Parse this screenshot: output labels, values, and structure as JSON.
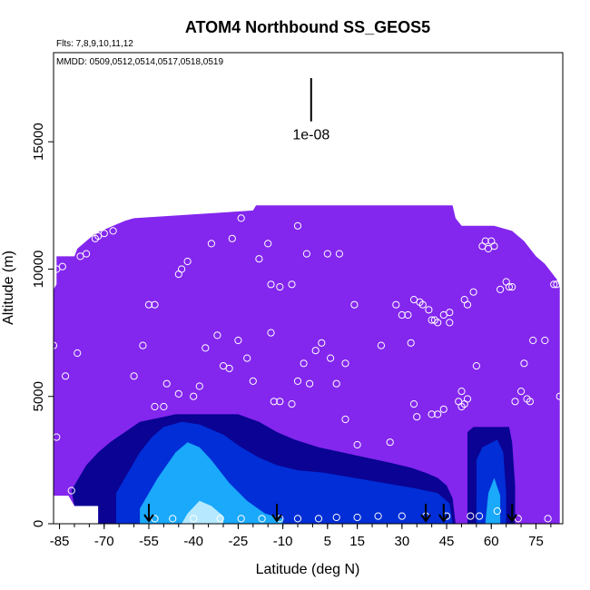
{
  "chart_data": {
    "type": "heatmap",
    "title": "ATOM4 Northbound SS_GEOS5",
    "flights_label": "Flts: 7,8,9,10,11,12",
    "dates_label": "MMDD: 0509,0512,0514,0517,0518,0519",
    "xlabel": "Latitude (deg N)",
    "ylabel": "Altitude (m)",
    "xlim": [
      -87,
      84
    ],
    "ylim": [
      0,
      18500
    ],
    "xticks": [
      "-85",
      "-70",
      "-55",
      "-40",
      "-25",
      "-10",
      "5",
      "15",
      "30",
      "45",
      "60",
      "75"
    ],
    "yticks": [
      "0",
      "5000",
      "10000",
      "15000"
    ],
    "scale_label": "1e-08",
    "scale_bar": {
      "x": -0.5,
      "y0": 15800,
      "y1": 17500
    },
    "colors": {
      "background": "#8326ee",
      "low": "#00008c",
      "mid": "#0033dd",
      "high": "#1db7ff",
      "peak": "#c8f0ff",
      "marker": "#ffffff"
    },
    "top_envelope": [
      [
        -86,
        10500
      ],
      [
        -80,
        10500
      ],
      [
        -79,
        10800
      ],
      [
        -77,
        11000
      ],
      [
        -75,
        11200
      ],
      [
        -73,
        11400
      ],
      [
        -71,
        11500
      ],
      [
        -69,
        11600
      ],
      [
        -67,
        11700
      ],
      [
        -65,
        11800
      ],
      [
        -63,
        11900
      ],
      [
        -60,
        12000
      ],
      [
        -20,
        12300
      ],
      [
        -19,
        12500
      ],
      [
        47,
        12500
      ],
      [
        48,
        12000
      ],
      [
        50,
        11700
      ],
      [
        61,
        11700
      ],
      [
        64,
        11600
      ],
      [
        67,
        11500
      ],
      [
        69,
        11300
      ],
      [
        71,
        11100
      ],
      [
        73,
        10800
      ],
      [
        75,
        10500
      ],
      [
        78,
        10200
      ],
      [
        80,
        9900
      ],
      [
        82,
        9600
      ],
      [
        83,
        9300
      ]
    ],
    "left_edge": [
      [
        -87,
        0
      ],
      [
        -87,
        9200
      ],
      [
        -86,
        9400
      ],
      [
        -86,
        10500
      ]
    ],
    "right_edge": [
      [
        83,
        9300
      ],
      [
        83,
        0
      ]
    ],
    "blank_bottom_left": [
      [
        -87,
        0
      ],
      [
        -87,
        1100
      ],
      [
        -82,
        1100
      ],
      [
        -80,
        700
      ],
      [
        -72,
        700
      ],
      [
        -72,
        0
      ]
    ],
    "enhancement_regions": [
      {
        "level": "low",
        "points": [
          [
            -81,
            1300
          ],
          [
            -79,
            1700
          ],
          [
            -76,
            2300
          ],
          [
            -72,
            2800
          ],
          [
            -68,
            3200
          ],
          [
            -63,
            3600
          ],
          [
            -58,
            4000
          ],
          [
            -50,
            4200
          ],
          [
            -46,
            4300
          ],
          [
            -40,
            4300
          ],
          [
            -25,
            4300
          ],
          [
            -18,
            4000
          ],
          [
            -12,
            3600
          ],
          [
            -6,
            3300
          ],
          [
            2,
            3000
          ],
          [
            10,
            2800
          ],
          [
            18,
            2600
          ],
          [
            26,
            2400
          ],
          [
            33,
            2200
          ],
          [
            38,
            2000
          ],
          [
            42,
            1800
          ],
          [
            45,
            1500
          ],
          [
            47,
            1000
          ],
          [
            48,
            0
          ],
          [
            -72,
            0
          ],
          [
            -72,
            700
          ],
          [
            -80,
            700
          ]
        ]
      },
      {
        "level": "mid",
        "points": [
          [
            -66,
            1200
          ],
          [
            -62,
            2000
          ],
          [
            -58,
            2800
          ],
          [
            -54,
            3400
          ],
          [
            -50,
            3800
          ],
          [
            -44,
            4000
          ],
          [
            -38,
            3900
          ],
          [
            -30,
            3500
          ],
          [
            -24,
            3000
          ],
          [
            -18,
            2600
          ],
          [
            -12,
            2300
          ],
          [
            -5,
            2100
          ],
          [
            4,
            2000
          ],
          [
            14,
            1800
          ],
          [
            24,
            1600
          ],
          [
            34,
            1400
          ],
          [
            42,
            1200
          ],
          [
            46,
            800
          ],
          [
            47,
            0
          ],
          [
            -66,
            0
          ]
        ]
      },
      {
        "level": "high",
        "points": [
          [
            -58,
            600
          ],
          [
            -52,
            1800
          ],
          [
            -46,
            2800
          ],
          [
            -42,
            3200
          ],
          [
            -38,
            3000
          ],
          [
            -34,
            2500
          ],
          [
            -28,
            1600
          ],
          [
            -22,
            900
          ],
          [
            -16,
            400
          ],
          [
            -10,
            200
          ],
          [
            -10,
            0
          ],
          [
            -58,
            0
          ]
        ]
      },
      {
        "level": "peak",
        "points": [
          [
            -42,
            400
          ],
          [
            -38,
            900
          ],
          [
            -34,
            700
          ],
          [
            -30,
            300
          ],
          [
            -30,
            0
          ],
          [
            -44,
            0
          ]
        ]
      },
      {
        "level": "low",
        "points": [
          [
            52,
            0
          ],
          [
            52,
            3600
          ],
          [
            54,
            3800
          ],
          [
            66,
            3800
          ],
          [
            67,
            3200
          ],
          [
            68,
            1500
          ],
          [
            68,
            0
          ]
        ]
      },
      {
        "level": "mid",
        "points": [
          [
            55,
            0
          ],
          [
            55,
            2500
          ],
          [
            57,
            3000
          ],
          [
            62,
            3300
          ],
          [
            64,
            2800
          ],
          [
            65,
            1200
          ],
          [
            65,
            0
          ]
        ]
      },
      {
        "level": "high",
        "points": [
          [
            58,
            0
          ],
          [
            59,
            1200
          ],
          [
            61,
            1800
          ],
          [
            63,
            1100
          ],
          [
            63,
            0
          ]
        ]
      }
    ],
    "observations": [
      [
        -87,
        7000
      ],
      [
        -86,
        10000
      ],
      [
        -84,
        10100
      ],
      [
        -86,
        3400
      ],
      [
        -83,
        5800
      ],
      [
        -81,
        1300
      ],
      [
        -79,
        6700
      ],
      [
        -78,
        10500
      ],
      [
        -76,
        10600
      ],
      [
        -73,
        11200
      ],
      [
        -72,
        11300
      ],
      [
        -70,
        11400
      ],
      [
        -67,
        11500
      ],
      [
        -60,
        5800
      ],
      [
        -57,
        7000
      ],
      [
        -55,
        8600
      ],
      [
        -53,
        8600
      ],
      [
        -53,
        4600
      ],
      [
        -50,
        4600
      ],
      [
        -49,
        5500
      ],
      [
        -45,
        5100
      ],
      [
        -45,
        9800
      ],
      [
        -44,
        10000
      ],
      [
        -42,
        10300
      ],
      [
        -40,
        5000
      ],
      [
        -38,
        5400
      ],
      [
        -36,
        6900
      ],
      [
        -34,
        11000
      ],
      [
        -32,
        7400
      ],
      [
        -30,
        6200
      ],
      [
        -28,
        6100
      ],
      [
        -27,
        11200
      ],
      [
        -25,
        7200
      ],
      [
        -24,
        12000
      ],
      [
        -22,
        6500
      ],
      [
        -20,
        5600
      ],
      [
        -18,
        10400
      ],
      [
        -15,
        11000
      ],
      [
        -14,
        7500
      ],
      [
        -14,
        9400
      ],
      [
        -13,
        4800
      ],
      [
        -11,
        4800
      ],
      [
        -11,
        9300
      ],
      [
        -7,
        4700
      ],
      [
        -7,
        9400
      ],
      [
        -5,
        5600
      ],
      [
        -5,
        11700
      ],
      [
        -3,
        6300
      ],
      [
        -2,
        10600
      ],
      [
        -1,
        5500
      ],
      [
        1,
        6800
      ],
      [
        3,
        7100
      ],
      [
        5,
        10600
      ],
      [
        6,
        6500
      ],
      [
        8,
        5500
      ],
      [
        9,
        10600
      ],
      [
        11,
        4100
      ],
      [
        11,
        6300
      ],
      [
        14,
        8600
      ],
      [
        15,
        3100
      ],
      [
        23,
        7000
      ],
      [
        26,
        3200
      ],
      [
        28,
        8600
      ],
      [
        30,
        8200
      ],
      [
        32,
        8200
      ],
      [
        33,
        7100
      ],
      [
        34,
        4700
      ],
      [
        34,
        8800
      ],
      [
        35,
        4200
      ],
      [
        36,
        8700
      ],
      [
        37,
        8600
      ],
      [
        39,
        8400
      ],
      [
        40,
        8000
      ],
      [
        40,
        4300
      ],
      [
        41,
        8000
      ],
      [
        42,
        7900
      ],
      [
        42,
        4300
      ],
      [
        44,
        8200
      ],
      [
        44,
        4500
      ],
      [
        46,
        7900
      ],
      [
        46,
        8300
      ],
      [
        49,
        4800
      ],
      [
        50,
        4600
      ],
      [
        50,
        5200
      ],
      [
        51,
        4700
      ],
      [
        52,
        4900
      ],
      [
        51,
        8800
      ],
      [
        52,
        8600
      ],
      [
        54,
        9100
      ],
      [
        55,
        6200
      ],
      [
        57,
        10900
      ],
      [
        58,
        11100
      ],
      [
        59,
        10800
      ],
      [
        60,
        11100
      ],
      [
        61,
        10900
      ],
      [
        63,
        9200
      ],
      [
        65,
        9500
      ],
      [
        66,
        9300
      ],
      [
        67,
        9300
      ],
      [
        68,
        4800
      ],
      [
        70,
        5200
      ],
      [
        71,
        6300
      ],
      [
        72,
        4900
      ],
      [
        73,
        4800
      ],
      [
        74,
        7200
      ],
      [
        78,
        7200
      ],
      [
        81,
        9400
      ],
      [
        82,
        9400
      ],
      [
        83,
        5000
      ],
      [
        -53,
        200
      ],
      [
        -47,
        200
      ],
      [
        -40,
        200
      ],
      [
        -31,
        200
      ],
      [
        -24,
        200
      ],
      [
        -17,
        200
      ],
      [
        -11,
        200
      ],
      [
        -5,
        200
      ],
      [
        2,
        200
      ],
      [
        8,
        250
      ],
      [
        15,
        250
      ],
      [
        22,
        300
      ],
      [
        30,
        300
      ],
      [
        38,
        300
      ],
      [
        45,
        300
      ],
      [
        53,
        300
      ],
      [
        56,
        300
      ],
      [
        62,
        500
      ],
      [
        69,
        200
      ],
      [
        79,
        200
      ]
    ],
    "arrows": [
      -55,
      -12,
      38,
      44,
      67
    ]
  }
}
